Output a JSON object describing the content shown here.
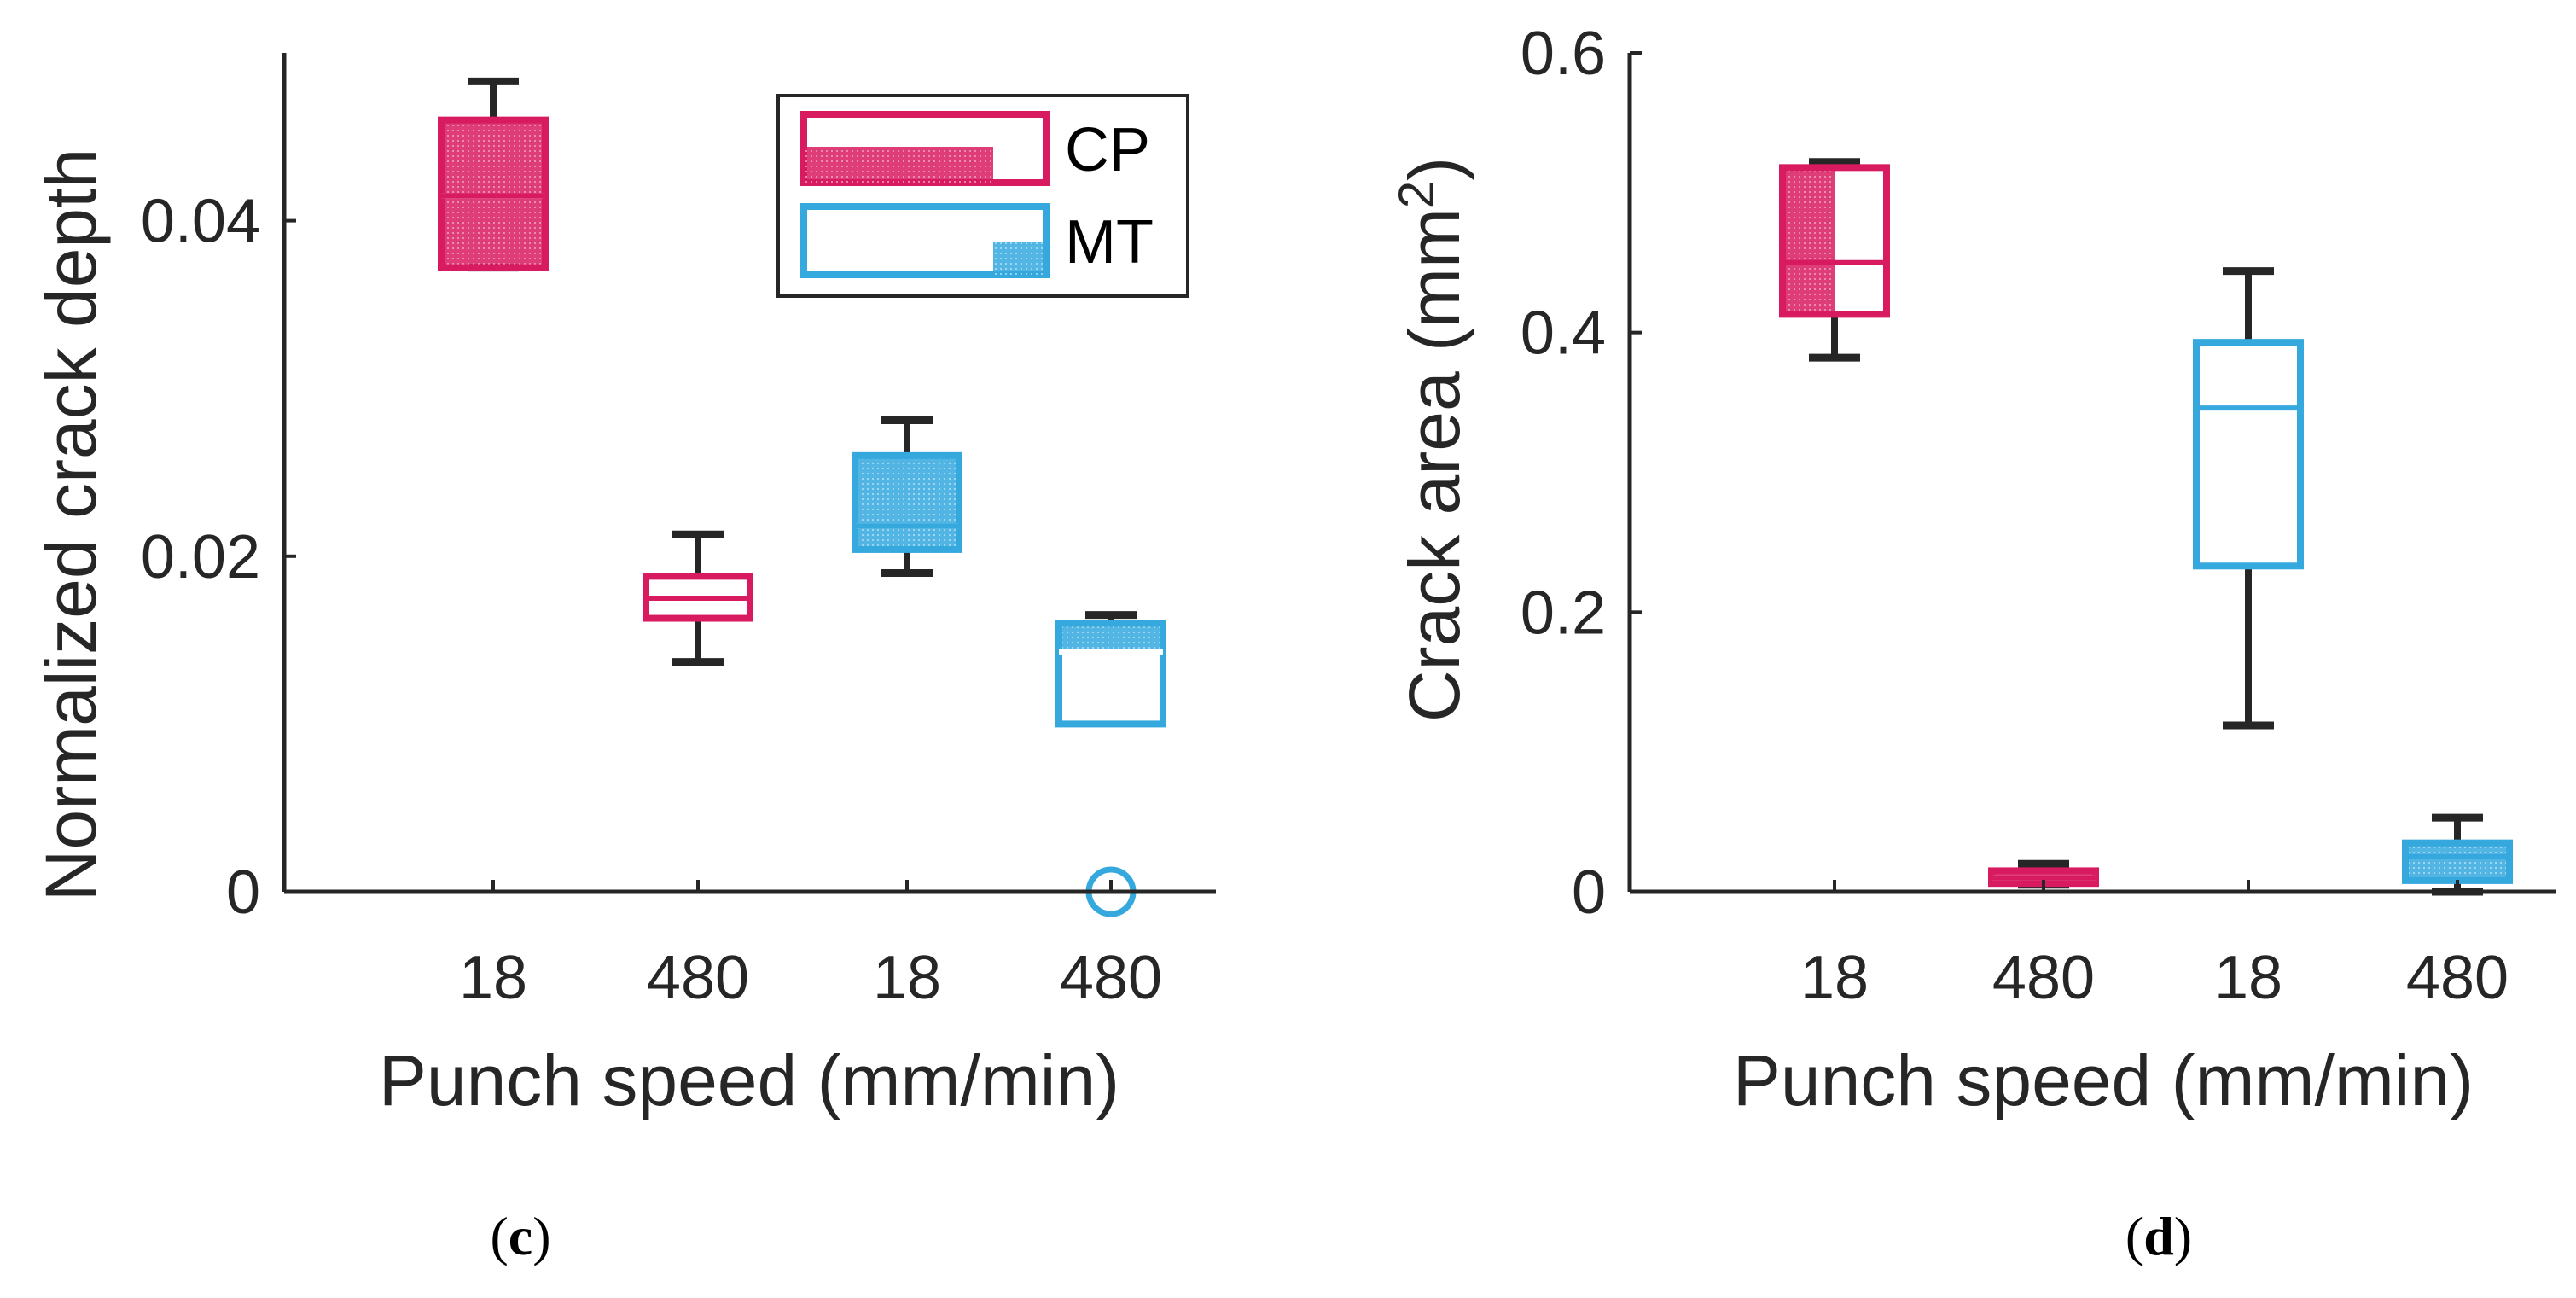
{
  "colors": {
    "cp": "#d81b60",
    "mt": "#35a8de",
    "axis": "#262626",
    "whisker": "#262626"
  },
  "legend": {
    "entries": [
      "CP",
      "MT"
    ]
  },
  "captions": {
    "c_open": "(",
    "c_letter": "c",
    "c_close": ")",
    "d_open": "(",
    "d_letter": "d",
    "d_close": ")"
  },
  "chart_data": [
    {
      "id": "c",
      "type": "box",
      "xlabel": "Punch speed (mm/min)",
      "ylabel": "Normalized crack depth",
      "ylim": [
        0,
        0.05
      ],
      "yticks": [
        0,
        0.02,
        0.04
      ],
      "ytick_labels": [
        "0",
        "0.02",
        "0.04"
      ],
      "categories": [
        "18",
        "480",
        "18",
        "480"
      ],
      "groups": [
        "CP",
        "CP",
        "MT",
        "MT"
      ],
      "boxes": [
        {
          "group": "CP",
          "speed": "18",
          "whisker_low": 0.0372,
          "q1": 0.0372,
          "median": 0.0415,
          "q3": 0.046,
          "whisker_high": 0.0483,
          "fill": "full"
        },
        {
          "group": "CP",
          "speed": "480",
          "whisker_low": 0.0137,
          "q1": 0.0163,
          "median": 0.0175,
          "q3": 0.0188,
          "whisker_high": 0.0213,
          "fill": "none"
        },
        {
          "group": "MT",
          "speed": "18",
          "whisker_low": 0.019,
          "q1": 0.0204,
          "median": 0.0218,
          "q3": 0.026,
          "whisker_high": 0.0281,
          "fill": "full"
        },
        {
          "group": "MT",
          "speed": "480",
          "whisker_low": null,
          "q1": 0.01,
          "median": 0.0143,
          "q3": 0.016,
          "whisker_high": 0.0165,
          "fill": "upper",
          "outliers": [
            0.0
          ]
        }
      ]
    },
    {
      "id": "d",
      "type": "box",
      "xlabel": "Punch speed (mm/min)",
      "ylabel_main": "Crack area (mm",
      "ylabel_sup": "2",
      "ylabel_close": ")",
      "ylim": [
        0,
        0.6
      ],
      "yticks": [
        0,
        0.2,
        0.4,
        0.6
      ],
      "ytick_labels": [
        "0",
        "0.2",
        "0.4",
        "0.6"
      ],
      "categories": [
        "18",
        "480",
        "18",
        "480"
      ],
      "groups": [
        "CP",
        "CP",
        "MT",
        "MT"
      ],
      "boxes": [
        {
          "group": "CP",
          "speed": "18",
          "whisker_low": 0.382,
          "q1": 0.413,
          "median": 0.45,
          "q3": 0.518,
          "whisker_high": 0.522,
          "fill": "left"
        },
        {
          "group": "CP",
          "speed": "480",
          "whisker_low": 0.005,
          "q1": 0.006,
          "median": 0.01,
          "q3": 0.015,
          "whisker_high": 0.02,
          "fill": "full"
        },
        {
          "group": "MT",
          "speed": "18",
          "whisker_low": 0.119,
          "q1": 0.233,
          "median": 0.346,
          "q3": 0.393,
          "whisker_high": 0.444,
          "fill": "none"
        },
        {
          "group": "MT",
          "speed": "480",
          "whisker_low": 0.0,
          "q1": 0.008,
          "median": 0.025,
          "q3": 0.035,
          "whisker_high": 0.053,
          "fill": "full"
        }
      ]
    }
  ]
}
